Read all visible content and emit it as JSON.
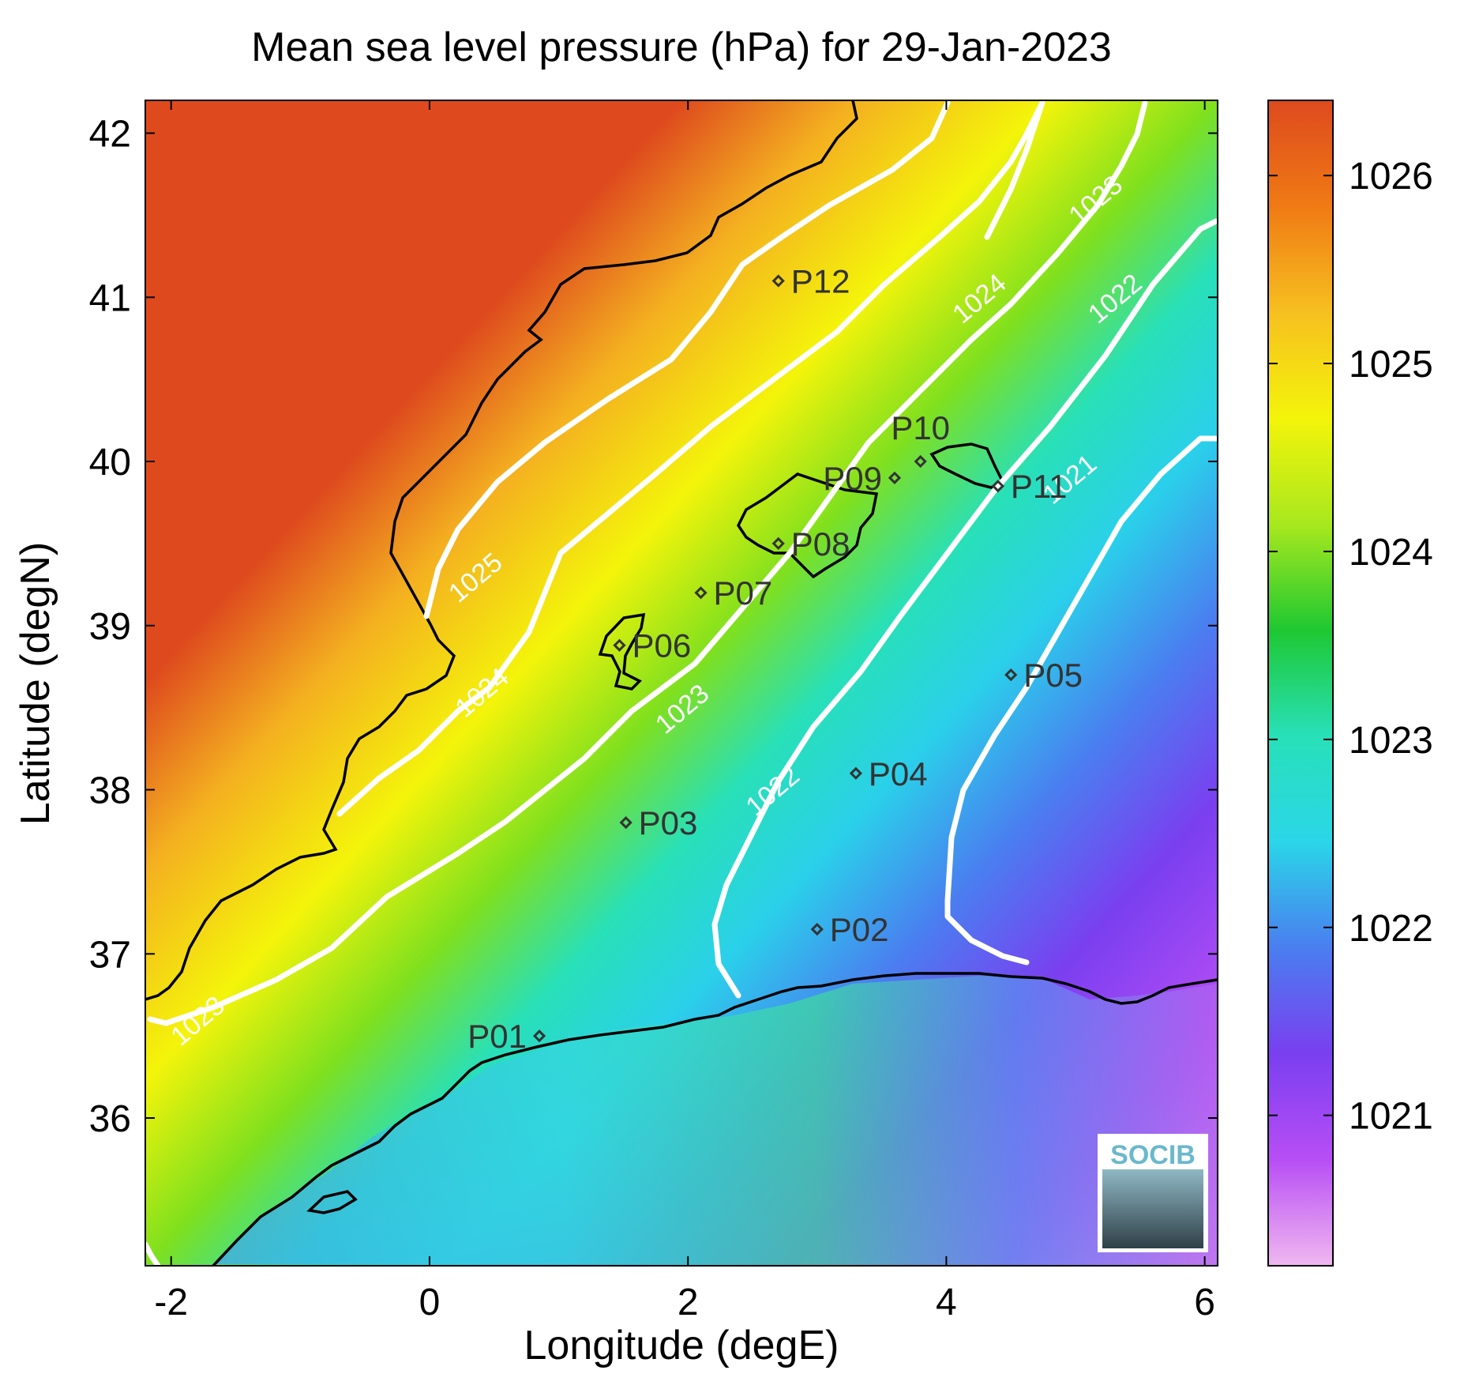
{
  "title": "Mean sea level pressure (hPa) for 29-Jan-2023",
  "xlabel": "Longitude (degE)",
  "ylabel": "Latitude (degN)",
  "xlim": [
    -2.2,
    6.1
  ],
  "ylim": [
    35.1,
    42.2
  ],
  "xticks": [
    {
      "value": -2,
      "label": "-2"
    },
    {
      "value": 0,
      "label": "0"
    },
    {
      "value": 2,
      "label": "2"
    },
    {
      "value": 4,
      "label": "4"
    },
    {
      "value": 6,
      "label": "6"
    }
  ],
  "yticks": [
    {
      "value": 36,
      "label": "36"
    },
    {
      "value": 37,
      "label": "37"
    },
    {
      "value": 38,
      "label": "38"
    },
    {
      "value": 39,
      "label": "39"
    },
    {
      "value": 40,
      "label": "40"
    },
    {
      "value": 41,
      "label": "41"
    },
    {
      "value": 42,
      "label": "42"
    }
  ],
  "colorbar": {
    "range": [
      1020.2,
      1026.4
    ],
    "ticks": [
      {
        "value": 1021,
        "label": "1021"
      },
      {
        "value": 1022,
        "label": "1022"
      },
      {
        "value": 1023,
        "label": "1023"
      },
      {
        "value": 1024,
        "label": "1024"
      },
      {
        "value": 1025,
        "label": "1025"
      },
      {
        "value": 1026,
        "label": "1026"
      }
    ],
    "colors": [
      "#f0b8f0",
      "#b84ef5",
      "#7a3ff0",
      "#4a7ef0",
      "#2ad6e8",
      "#28e0b8",
      "#1ec832",
      "#a8e81e",
      "#f4f40a",
      "#f6c020",
      "#f07a14",
      "#de4a1e"
    ]
  },
  "chart_data": {
    "type": "heatmap",
    "field": "mean sea level pressure",
    "units": "hPa",
    "date": "29-Jan-2023",
    "contour_levels": [
      {
        "level": 1025,
        "label": "1025",
        "label_at": [
          0.4,
          39.25
        ]
      },
      {
        "level": 1024,
        "label": "1024",
        "label_at": [
          0.45,
          38.55
        ]
      },
      {
        "level": 1024,
        "label": "1024",
        "label_at": [
          4.3,
          40.95
        ]
      },
      {
        "level": 1023,
        "label": "1023",
        "label_at": [
          -1.75,
          36.55
        ]
      },
      {
        "level": 1023,
        "label": "1023",
        "label_at": [
          2.0,
          38.45
        ]
      },
      {
        "level": 1023,
        "label": "1023",
        "label_at": [
          5.2,
          41.55
        ]
      },
      {
        "level": 1022,
        "label": "1022",
        "label_at": [
          2.7,
          37.95
        ]
      },
      {
        "level": 1022,
        "label": "1022",
        "label_at": [
          5.35,
          40.95
        ]
      },
      {
        "level": 1021,
        "label": "1021",
        "label_at": [
          5.0,
          39.85
        ]
      }
    ],
    "stations": [
      {
        "name": "P01",
        "lon": 0.85,
        "lat": 36.5,
        "label_side": "left"
      },
      {
        "name": "P02",
        "lon": 3.0,
        "lat": 37.15,
        "label_side": "right"
      },
      {
        "name": "P03",
        "lon": 1.52,
        "lat": 37.8,
        "label_side": "right"
      },
      {
        "name": "P04",
        "lon": 3.3,
        "lat": 38.1,
        "label_side": "right"
      },
      {
        "name": "P05",
        "lon": 4.5,
        "lat": 38.7,
        "label_side": "right"
      },
      {
        "name": "P06",
        "lon": 1.47,
        "lat": 38.88,
        "label_side": "right"
      },
      {
        "name": "P07",
        "lon": 2.1,
        "lat": 39.2,
        "label_side": "right"
      },
      {
        "name": "P08",
        "lon": 2.7,
        "lat": 39.5,
        "label_side": "right"
      },
      {
        "name": "P09",
        "lon": 3.6,
        "lat": 39.9,
        "label_side": "left"
      },
      {
        "name": "P10",
        "lon": 3.8,
        "lat": 40.0,
        "label_side": "above"
      },
      {
        "name": "P11",
        "lon": 4.4,
        "lat": 39.85,
        "label_side": "right"
      },
      {
        "name": "P12",
        "lon": 2.7,
        "lat": 41.1,
        "label_side": "right"
      }
    ]
  },
  "logo": {
    "text": "SOCIB"
  }
}
